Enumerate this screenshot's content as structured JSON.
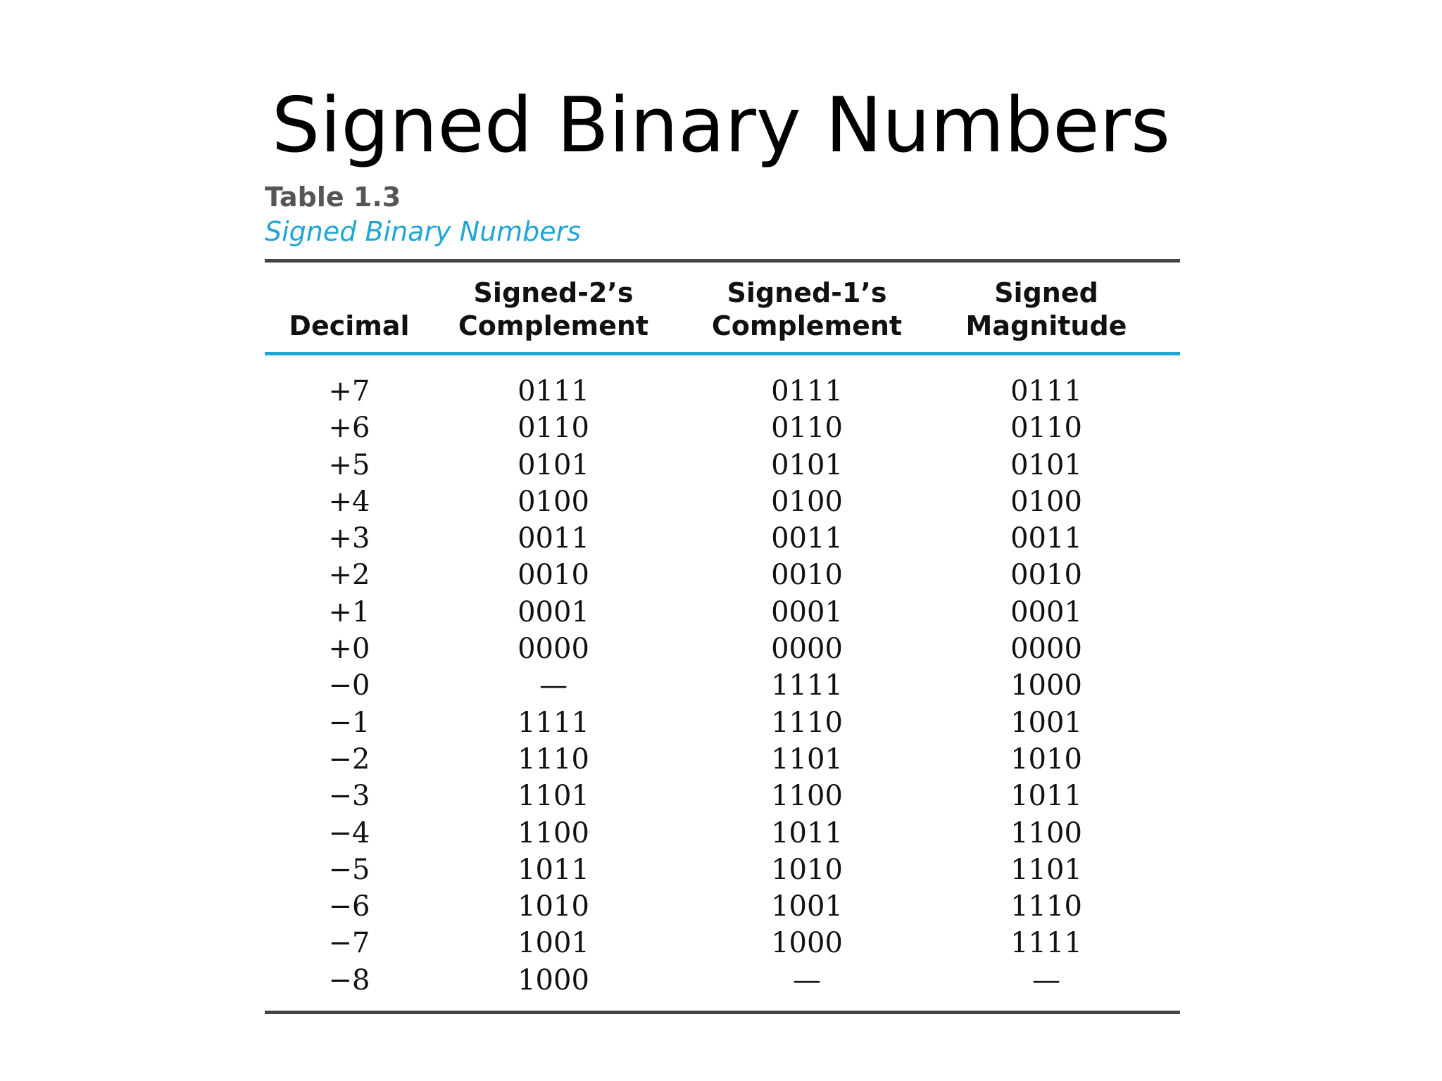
{
  "slide": {
    "title": "Signed Binary Numbers"
  },
  "table": {
    "number": "Table 1.3",
    "name": "Signed Binary Numbers",
    "colors": {
      "accent": "#1fa6d6",
      "rule": "#444444"
    },
    "headers": [
      {
        "line1": "",
        "line2": "Decimal"
      },
      {
        "line1": "Signed-2’s",
        "line2": "Complement"
      },
      {
        "line1": "Signed-1’s",
        "line2": "Complement"
      },
      {
        "line1": "Signed",
        "line2": "Magnitude"
      }
    ],
    "rows": [
      [
        "+7",
        "0111",
        "0111",
        "0111"
      ],
      [
        "+6",
        "0110",
        "0110",
        "0110"
      ],
      [
        "+5",
        "0101",
        "0101",
        "0101"
      ],
      [
        "+4",
        "0100",
        "0100",
        "0100"
      ],
      [
        "+3",
        "0011",
        "0011",
        "0011"
      ],
      [
        "+2",
        "0010",
        "0010",
        "0010"
      ],
      [
        "+1",
        "0001",
        "0001",
        "0001"
      ],
      [
        "+0",
        "0000",
        "0000",
        "0000"
      ],
      [
        "−0",
        "—",
        "1111",
        "1000"
      ],
      [
        "−1",
        "1111",
        "1110",
        "1001"
      ],
      [
        "−2",
        "1110",
        "1101",
        "1010"
      ],
      [
        "−3",
        "1101",
        "1100",
        "1011"
      ],
      [
        "−4",
        "1100",
        "1011",
        "1100"
      ],
      [
        "−5",
        "1011",
        "1010",
        "1101"
      ],
      [
        "−6",
        "1010",
        "1001",
        "1110"
      ],
      [
        "−7",
        "1001",
        "1000",
        "1111"
      ],
      [
        "−8",
        "1000",
        "—",
        "—"
      ]
    ]
  }
}
